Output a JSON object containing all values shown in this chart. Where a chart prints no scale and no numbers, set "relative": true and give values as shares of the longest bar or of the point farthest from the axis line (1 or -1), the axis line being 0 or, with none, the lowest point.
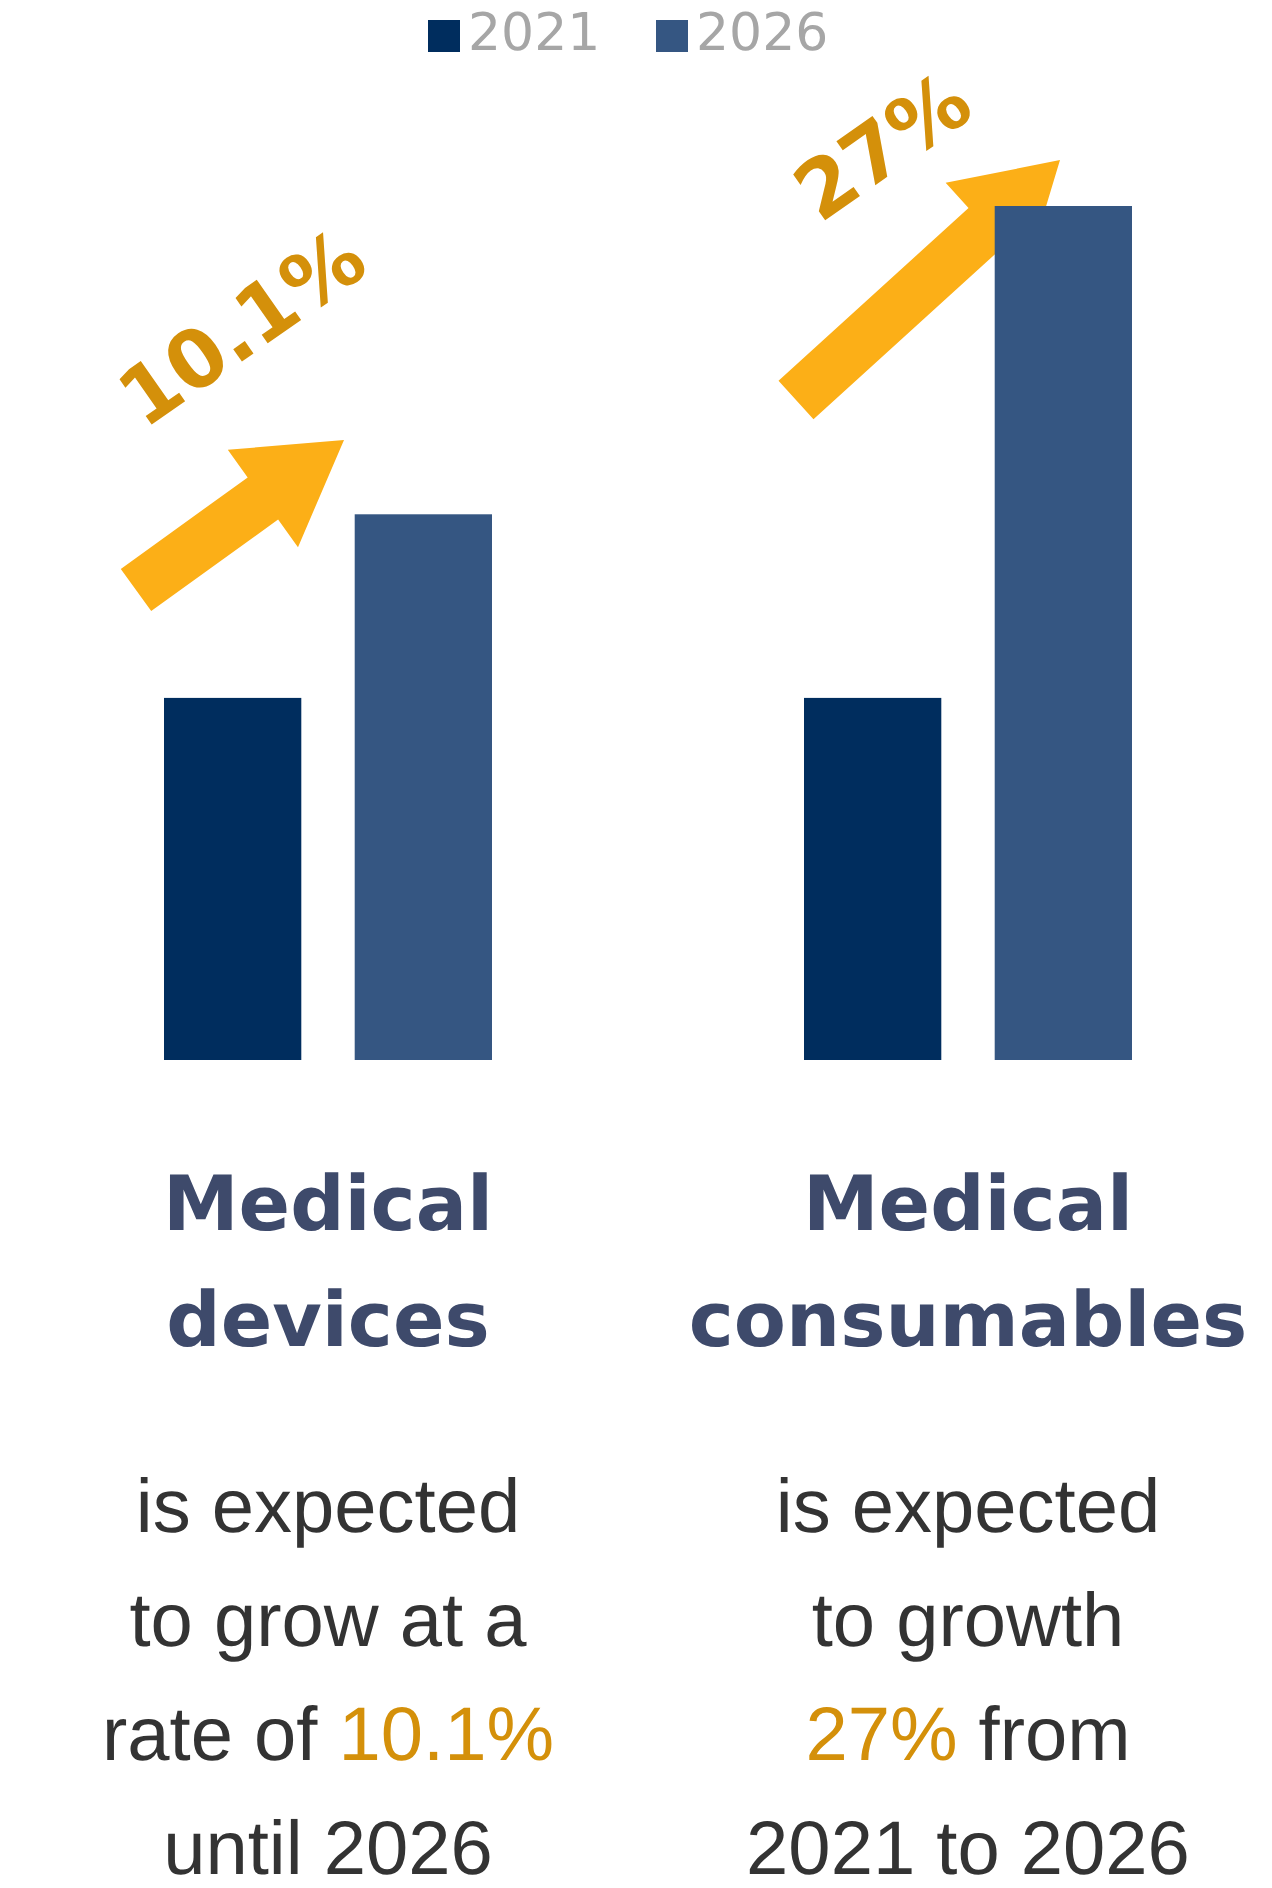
{
  "chart_data": {
    "type": "bar",
    "relative": true,
    "categories": [
      "Medical devices",
      "Medical consumables"
    ],
    "series": [
      {
        "name": "2021",
        "color": "#002d5e",
        "values": [
          0.424,
          0.424
        ]
      },
      {
        "name": "2026",
        "color": "#355682",
        "values": [
          0.639,
          1
        ]
      }
    ],
    "legend": "top",
    "annotations": [
      "10.1%",
      "27%",
      "is expected to grow at a rate of 10.1% until 2026",
      "is expected to growth 27% from 2021 to 2026"
    ]
  }
}
